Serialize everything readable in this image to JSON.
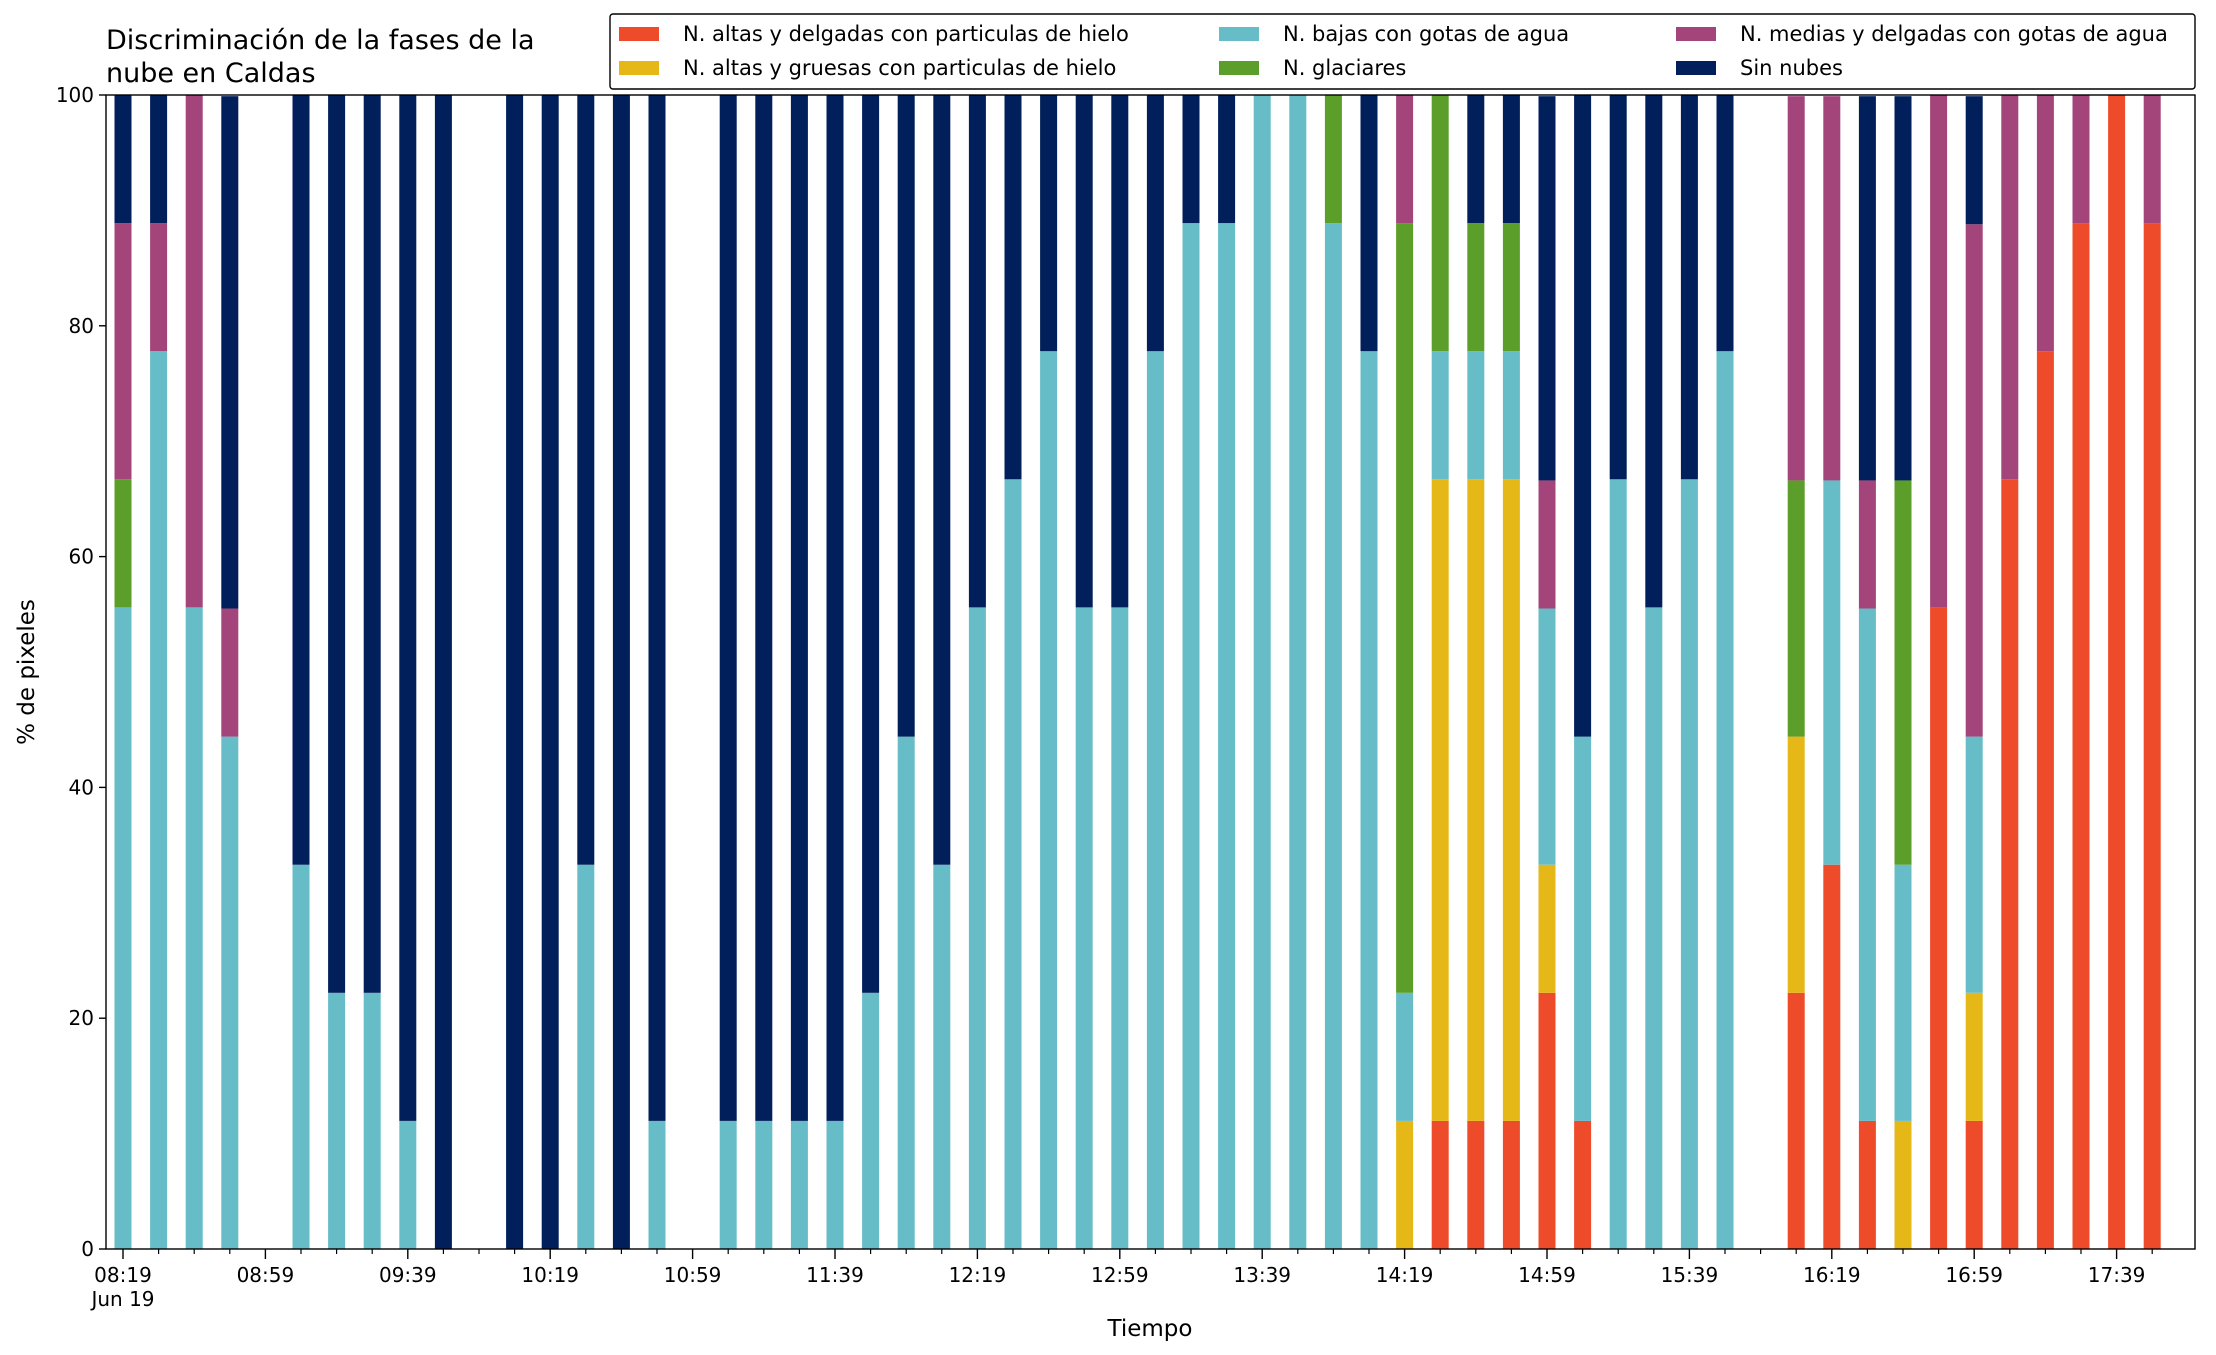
{
  "chart_data": {
    "type": "stacked_bar",
    "title": [
      "Discriminación de la fases de la",
      "nube en Caldas"
    ],
    "xlabel": "Tiempo",
    "ylabel": "% de pixeles",
    "x_date_label": "Jun 19",
    "categories": [
      "08:19",
      null,
      null,
      null,
      "08:59",
      null,
      null,
      null,
      "09:39",
      null,
      null,
      null,
      "10:19",
      null,
      null,
      null,
      "10:59",
      null,
      null,
      null,
      "11:39",
      null,
      null,
      null,
      "12:19",
      null,
      null,
      null,
      "12:59",
      null,
      null,
      null,
      "13:39",
      null,
      null,
      null,
      "14:19",
      null,
      null,
      null,
      "14:59",
      null,
      null,
      null,
      "15:39",
      null,
      null,
      null,
      "16:19",
      null,
      null,
      null,
      "16:59",
      null,
      null,
      null,
      "17:39",
      null
    ],
    "ylim": [
      0,
      100
    ],
    "yticks": [
      0,
      20,
      40,
      60,
      80,
      100
    ],
    "legend_position": "top right",
    "series": [
      {
        "name": "N. altas y delgadas con particulas de hielo",
        "color": "#ee4b2b",
        "values": [
          0,
          0,
          0,
          0,
          null,
          0,
          0,
          0,
          0,
          0,
          null,
          0,
          0,
          0,
          0,
          0,
          null,
          0,
          0,
          0,
          0,
          0,
          0,
          0,
          0,
          0,
          0,
          0,
          0,
          0,
          0,
          0,
          0,
          0,
          0,
          0,
          0,
          11.1,
          11.1,
          11.1,
          22.2,
          11.1,
          0,
          0,
          0,
          0,
          null,
          22.2,
          33.3,
          11.1,
          0,
          55.6,
          11.1,
          66.7,
          77.8,
          88.9,
          100,
          88.9
        ]
      },
      {
        "name": "N. altas y gruesas con particulas de hielo",
        "color": "#e6b817",
        "values": [
          0,
          0,
          0,
          0,
          null,
          0,
          0,
          0,
          0,
          0,
          null,
          0,
          0,
          0,
          0,
          0,
          null,
          0,
          0,
          0,
          0,
          0,
          0,
          0,
          0,
          0,
          0,
          0,
          0,
          0,
          0,
          0,
          0,
          0,
          0,
          0,
          11.1,
          55.6,
          55.6,
          55.6,
          11.1,
          0,
          0,
          0,
          0,
          0,
          null,
          22.2,
          0,
          0,
          11.1,
          0,
          11.1,
          0,
          0,
          0,
          0,
          0
        ]
      },
      {
        "name": "N. bajas con gotas de agua",
        "color": "#66bdc8",
        "values": [
          55.6,
          77.8,
          55.6,
          44.4,
          null,
          33.3,
          22.2,
          22.2,
          11.1,
          0,
          null,
          0,
          0,
          33.3,
          0,
          11.1,
          null,
          11.1,
          11.1,
          11.1,
          11.1,
          22.2,
          44.4,
          33.3,
          55.6,
          66.7,
          77.8,
          55.6,
          55.6,
          77.8,
          88.9,
          88.9,
          100,
          100,
          88.9,
          77.8,
          11.1,
          11.1,
          11.1,
          11.1,
          22.2,
          33.3,
          66.7,
          55.6,
          66.7,
          77.8,
          null,
          0,
          33.3,
          44.4,
          22.2,
          0,
          22.2,
          0,
          0,
          0,
          0,
          0
        ]
      },
      {
        "name": "N. glaciares",
        "color": "#5b9f2a",
        "values": [
          11.1,
          0,
          0,
          0,
          null,
          0,
          0,
          0,
          0,
          0,
          null,
          0,
          0,
          0,
          0,
          0,
          null,
          0,
          0,
          0,
          0,
          0,
          0,
          0,
          0,
          0,
          0,
          0,
          0,
          0,
          0,
          0,
          0,
          0,
          11.1,
          0,
          66.7,
          22.2,
          11.1,
          11.1,
          0,
          0,
          0,
          0,
          0,
          0,
          null,
          22.2,
          0,
          0,
          33.3,
          0,
          0,
          0,
          0,
          0,
          0,
          0
        ]
      },
      {
        "name": "N. medias y delgadas con gotas de agua",
        "color": "#a3457b",
        "values": [
          22.2,
          11.1,
          44.4,
          11.1,
          null,
          0,
          0,
          0,
          0,
          0,
          null,
          0,
          0,
          0,
          0,
          0,
          null,
          0,
          0,
          0,
          0,
          0,
          0,
          0,
          0,
          0,
          0,
          0,
          0,
          0,
          0,
          0,
          0,
          0,
          0,
          0,
          11.1,
          0,
          0,
          0,
          11.1,
          0,
          0,
          0,
          0,
          0,
          null,
          33.3,
          33.3,
          11.1,
          0,
          44.4,
          44.4,
          33.3,
          22.2,
          11.1,
          0,
          11.1
        ]
      },
      {
        "name": "Sin nubes",
        "color": "#001f5b",
        "values": [
          11.1,
          11.1,
          0,
          44.4,
          null,
          66.7,
          77.8,
          77.8,
          88.9,
          100,
          null,
          100,
          100,
          66.7,
          100,
          88.9,
          null,
          88.9,
          88.9,
          88.9,
          88.9,
          77.8,
          55.6,
          66.7,
          44.4,
          33.3,
          22.2,
          44.4,
          44.4,
          22.2,
          11.1,
          11.1,
          0,
          0,
          0,
          22.2,
          0,
          0,
          11.1,
          11.1,
          33.3,
          55.6,
          33.3,
          44.4,
          33.3,
          22.2,
          null,
          0,
          0,
          33.3,
          33.3,
          0,
          11.1,
          0,
          0,
          0,
          0,
          0
        ]
      }
    ]
  }
}
